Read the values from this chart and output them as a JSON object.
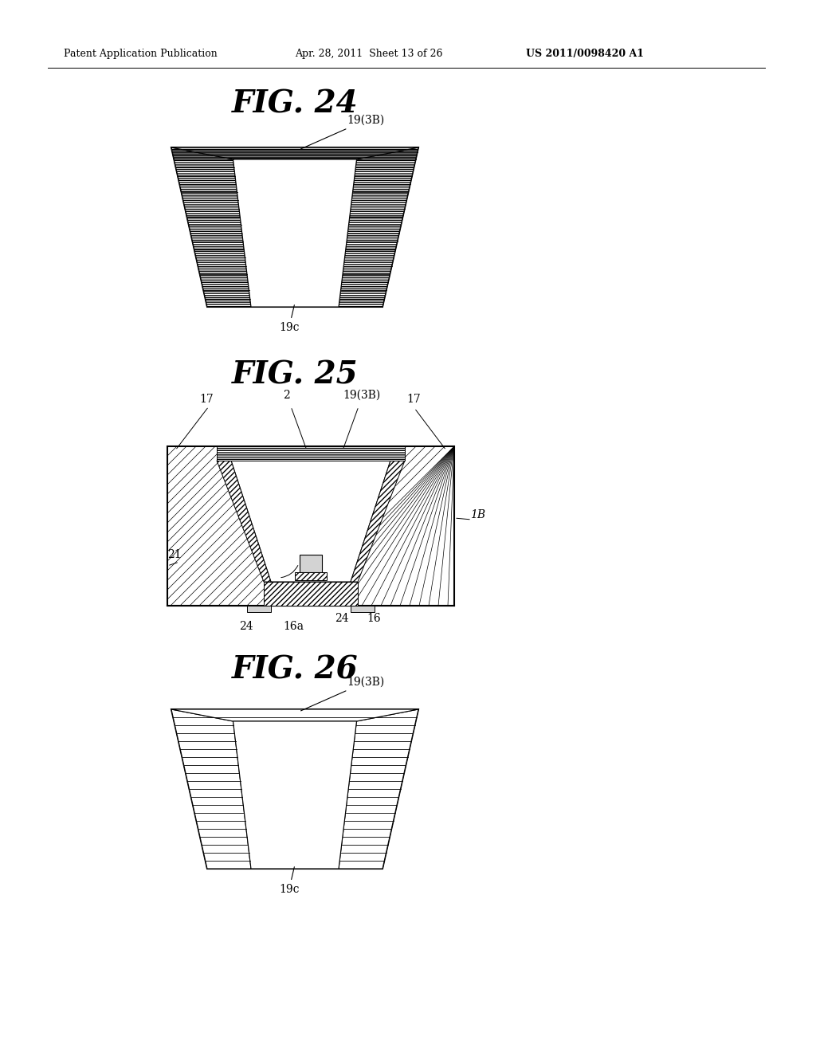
{
  "header_left": "Patent Application Publication",
  "header_mid": "Apr. 28, 2011  Sheet 13 of 26",
  "header_right": "US 2011/0098420 A1",
  "fig24_title": "FIG. 24",
  "fig25_title": "FIG. 25",
  "fig26_title": "FIG. 26",
  "bg_color": "#ffffff",
  "line_color": "#000000",
  "hatch_color": "#000000"
}
